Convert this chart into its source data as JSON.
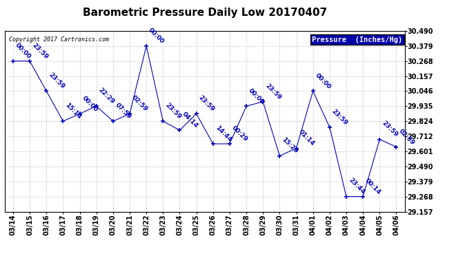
{
  "title": "Barometric Pressure Daily Low 20170407",
  "copyright": "Copyright 2017 Cartronics.com",
  "legend_label": "Pressure  (Inches/Hg)",
  "background_color": "#ffffff",
  "plot_background": "#ffffff",
  "line_color": "#0000bb",
  "grid_color": "#bbbbbb",
  "text_color": "#0000bb",
  "ylim": [
    29.157,
    30.49
  ],
  "yticks": [
    29.157,
    29.268,
    29.379,
    29.49,
    29.601,
    29.712,
    29.824,
    29.935,
    30.046,
    30.157,
    30.268,
    30.379,
    30.49
  ],
  "dates": [
    "03/14",
    "03/15",
    "03/16",
    "03/17",
    "03/18",
    "03/19",
    "03/20",
    "03/21",
    "03/22",
    "03/23",
    "03/24",
    "03/25",
    "03/26",
    "03/27",
    "03/28",
    "03/29",
    "03/30",
    "03/31",
    "04/01",
    "04/02",
    "04/03",
    "04/04",
    "04/05",
    "04/06"
  ],
  "values": [
    30.268,
    30.268,
    30.046,
    29.824,
    29.879,
    29.935,
    29.824,
    29.879,
    30.379,
    29.824,
    29.757,
    29.879,
    29.657,
    29.657,
    29.935,
    29.968,
    29.568,
    29.624,
    30.046,
    29.78,
    29.268,
    29.268,
    29.69,
    29.634
  ],
  "annotations": [
    [
      0,
      30.268,
      "00:00"
    ],
    [
      1,
      30.268,
      "23:59"
    ],
    [
      2,
      30.046,
      "23:59"
    ],
    [
      3,
      29.824,
      "15:14"
    ],
    [
      4,
      29.879,
      "00:00"
    ],
    [
      5,
      29.935,
      "22:29"
    ],
    [
      6,
      29.824,
      "07:59"
    ],
    [
      7,
      29.879,
      "02:59"
    ],
    [
      8,
      30.379,
      "00:00"
    ],
    [
      9,
      29.824,
      "23:59"
    ],
    [
      10,
      29.757,
      "04:14"
    ],
    [
      11,
      29.879,
      "23:59"
    ],
    [
      12,
      29.657,
      "14:44"
    ],
    [
      13,
      29.657,
      "00:29"
    ],
    [
      14,
      29.935,
      "00:00"
    ],
    [
      15,
      29.968,
      "23:59"
    ],
    [
      16,
      29.568,
      "15:29"
    ],
    [
      17,
      29.624,
      "01:14"
    ],
    [
      18,
      30.046,
      "00:00"
    ],
    [
      19,
      29.78,
      "23:59"
    ],
    [
      20,
      29.268,
      "23:44"
    ],
    [
      21,
      29.268,
      "00:14"
    ],
    [
      22,
      29.69,
      "23:59"
    ],
    [
      23,
      29.634,
      "02:59"
    ]
  ],
  "legend_bg": "#0000aa",
  "legend_text_color": "#ffffff",
  "title_fontsize": 11,
  "tick_fontsize": 7,
  "annotation_fontsize": 6.5
}
